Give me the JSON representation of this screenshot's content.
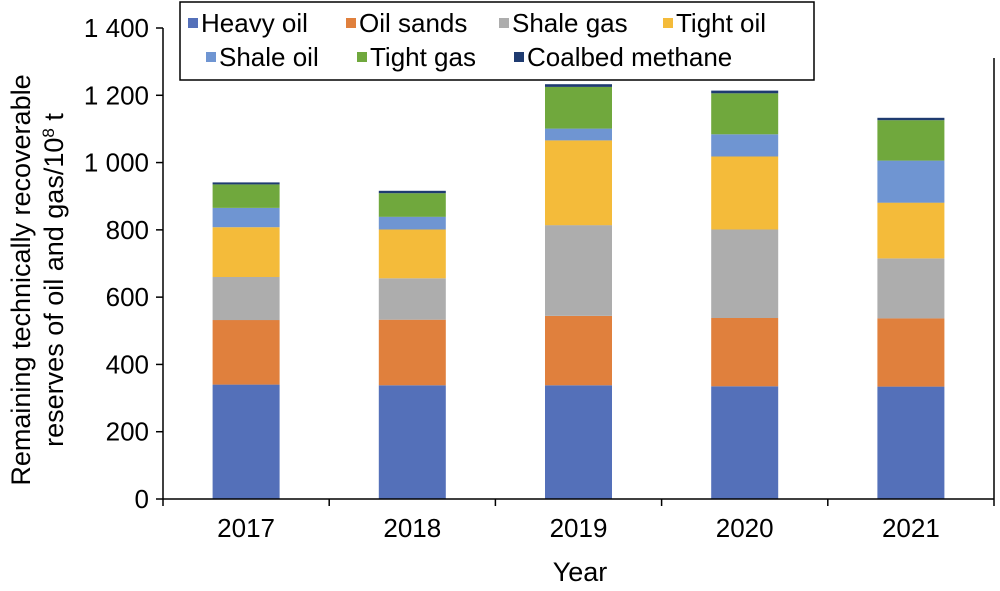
{
  "chart_data": {
    "type": "bar",
    "stacked": true,
    "categories": [
      "2017",
      "2018",
      "2019",
      "2020",
      "2021"
    ],
    "series": [
      {
        "name": "Heavy oil",
        "color": "#5470B9",
        "values": [
          340,
          338,
          338,
          335,
          334
        ]
      },
      {
        "name": "Oil sands",
        "color": "#E0803D",
        "values": [
          192,
          195,
          206,
          203,
          203
        ]
      },
      {
        "name": "Shale gas",
        "color": "#ADADAD",
        "values": [
          128,
          123,
          270,
          263,
          178
        ]
      },
      {
        "name": "Tight oil",
        "color": "#F4BB3A",
        "values": [
          148,
          145,
          252,
          217,
          166
        ]
      },
      {
        "name": "Shale oil",
        "color": "#6F95D2",
        "values": [
          57,
          38,
          35,
          66,
          125
        ]
      },
      {
        "name": "Tight gas",
        "color": "#70A83D",
        "values": [
          70,
          70,
          124,
          122,
          120
        ]
      },
      {
        "name": "Coalbed methane",
        "color": "#1F3B70",
        "values": [
          6,
          7,
          8,
          8,
          7
        ]
      }
    ],
    "xlabel": "Year",
    "ylabel_line1": "Remaining technically recoverable",
    "ylabel_line2_prefix": "reserves of oil and gas/10",
    "ylabel_line2_sup": "8",
    "ylabel_line2_suffix": " t",
    "ylim": [
      0,
      1400
    ],
    "yticks": [
      0,
      200,
      400,
      600,
      800,
      1000,
      1200,
      1400
    ],
    "ytick_labels": [
      "0",
      "200",
      "400",
      "600",
      "800",
      "1 000",
      "1 200",
      "1 400"
    ],
    "grid": false,
    "legend_position": "top"
  }
}
